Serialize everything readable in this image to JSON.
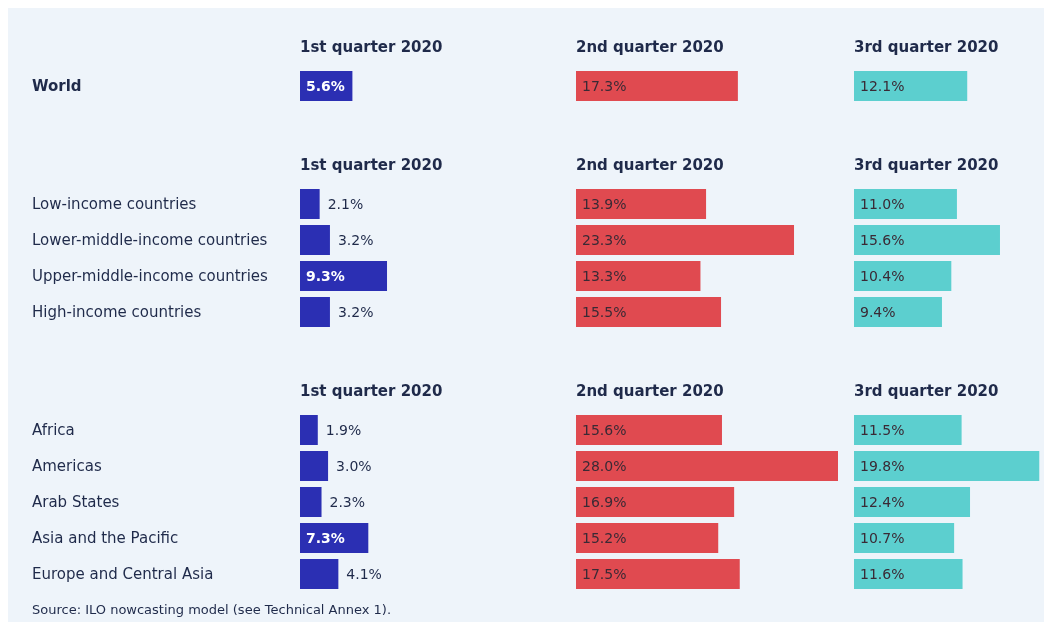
{
  "chart_data": [
    {
      "type": "bar",
      "orientation": "horizontal",
      "title": "1st quarter 2020",
      "categories": [
        "World"
      ],
      "values": [
        5.6
      ],
      "value_labels": [
        "5.6%"
      ],
      "color": "#2b2fb3",
      "tick_labels": "y",
      "annotations": [
        "Source: ILO nowcasting model (see Technical Annex 1)."
      ]
    },
    {
      "type": "bar",
      "orientation": "horizontal",
      "title": "2nd quarter 2020",
      "categories": [
        null
      ],
      "values": [
        17.3
      ],
      "value_labels": [
        "17.3%"
      ],
      "color": "#e04a50",
      "tick_labels": false
    },
    {
      "type": "bar",
      "orientation": "horizontal",
      "title": "3rd quarter 2020",
      "categories": [
        null
      ],
      "values": [
        12.1
      ],
      "value_labels": [
        "12.1%"
      ],
      "color": "#5ccfcf",
      "tick_labels": false
    },
    {
      "type": "bar",
      "orientation": "horizontal",
      "title": "1st quarter 2020",
      "categories": [
        "Low-income countries",
        "Lower-middle-income countries",
        "Upper-middle-income countries",
        "High-income countries"
      ],
      "values": [
        2.1,
        3.2,
        9.3,
        3.2
      ],
      "value_labels": [
        "2.1%",
        "3.2%",
        "9.3%",
        "3.2%"
      ],
      "color": "#2b2fb3",
      "tick_labels": "y"
    },
    {
      "type": "bar",
      "orientation": "horizontal",
      "title": "2nd quarter 2020",
      "categories": [
        null,
        null,
        null,
        null
      ],
      "values": [
        13.9,
        23.3,
        13.3,
        15.5
      ],
      "value_labels": [
        "13.9%",
        "23.3%",
        "13.3%",
        "15.5%"
      ],
      "color": "#e04a50",
      "tick_labels": false
    },
    {
      "type": "bar",
      "orientation": "horizontal",
      "title": "3rd quarter 2020",
      "categories": [
        null,
        null,
        null,
        null
      ],
      "values": [
        11.0,
        15.6,
        10.4,
        9.4
      ],
      "value_labels": [
        "11.0%",
        "15.6%",
        "10.4%",
        "9.4%"
      ],
      "color": "#5ccfcf",
      "tick_labels": false
    },
    {
      "type": "bar",
      "orientation": "horizontal",
      "title": "1st quarter 2020",
      "categories": [
        "Africa",
        "Americas",
        "Arab States",
        "Asia and the Pacific",
        "Europe and Central Asia"
      ],
      "values": [
        1.9,
        3.0,
        2.3,
        7.3,
        4.1
      ],
      "value_labels": [
        "1.9%",
        "3.0%",
        "2.3%",
        "7.3%",
        "4.1%"
      ],
      "color": "#2b2fb3",
      "tick_labels": "y"
    },
    {
      "type": "bar",
      "orientation": "horizontal",
      "title": "2nd quarter 2020",
      "categories": [
        null,
        null,
        null,
        null,
        null
      ],
      "values": [
        15.6,
        28.0,
        16.9,
        15.2,
        17.5
      ],
      "value_labels": [
        "15.6%",
        "28.0%",
        "16.9%",
        "15.2%",
        "17.5%"
      ],
      "color": "#e04a50",
      "tick_labels": false
    },
    {
      "type": "bar",
      "orientation": "horizontal",
      "title": "3rd quarter 2020",
      "categories": [
        null,
        null,
        null,
        null,
        null
      ],
      "values": [
        11.5,
        19.8,
        12.4,
        10.7,
        11.6
      ],
      "value_labels": [
        "11.5%",
        "19.8%",
        "12.4%",
        "10.7%",
        "11.6%"
      ],
      "color": "#5ccfcf",
      "tick_labels": false
    }
  ]
}
